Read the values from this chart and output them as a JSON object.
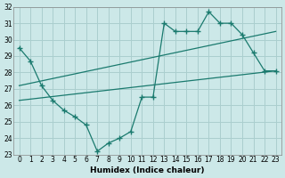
{
  "xlabel": "Humidex (Indice chaleur)",
  "xlim": [
    -0.5,
    23.5
  ],
  "ylim": [
    23,
    32
  ],
  "xticks": [
    0,
    1,
    2,
    3,
    4,
    5,
    6,
    7,
    8,
    9,
    10,
    11,
    12,
    13,
    14,
    15,
    16,
    17,
    18,
    19,
    20,
    21,
    22,
    23
  ],
  "yticks": [
    23,
    24,
    25,
    26,
    27,
    28,
    29,
    30,
    31,
    32
  ],
  "line_color": "#1a7a6e",
  "bg_color": "#cce8e8",
  "grid_color": "#aacece",
  "jagged_x": [
    0,
    1,
    2,
    3,
    4,
    5,
    6,
    7,
    8,
    9,
    10,
    11,
    12,
    13,
    14,
    15,
    16,
    17,
    18,
    19,
    20,
    21,
    22,
    23
  ],
  "jagged_y": [
    29.5,
    28.7,
    27.2,
    26.3,
    25.7,
    25.3,
    24.8,
    23.2,
    23.7,
    24.0,
    24.4,
    26.5,
    26.5,
    31.0,
    30.5,
    30.5,
    30.5,
    31.7,
    31.0,
    31.0,
    30.3,
    29.2,
    28.1,
    28.1
  ],
  "trend1_x": [
    0,
    23
  ],
  "trend1_y": [
    27.2,
    30.5
  ],
  "trend2_x": [
    0,
    23
  ],
  "trend2_y": [
    26.3,
    28.1
  ]
}
